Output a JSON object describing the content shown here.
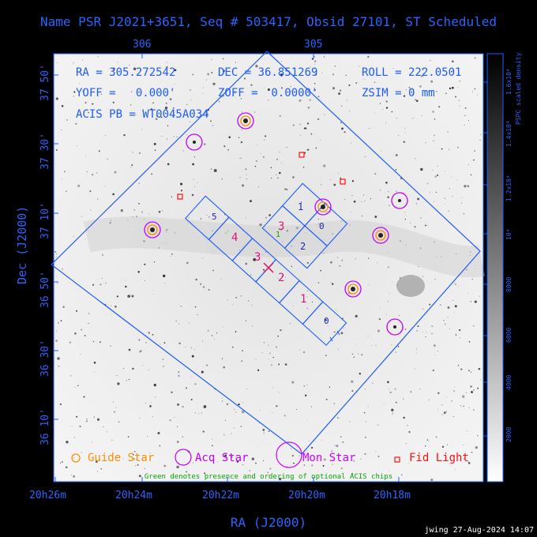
{
  "title": "Name PSR J2021+3651, Seq # 503417, Obsid 27101, ST Scheduled",
  "axes": {
    "xlabel": "RA (J2000)",
    "ylabel": "Dec (J2000)",
    "bottom_ticks": [
      "20h26m",
      "20h24m",
      "20h22m",
      "20h20m",
      "20h18m"
    ],
    "top_ticks": [
      "306",
      "305"
    ],
    "left_ticks": [
      "37 50'",
      "37 30'",
      "37 10'",
      "36 50'",
      "36 30'",
      "36 10'"
    ]
  },
  "info": {
    "ra": "RA = 305.272542",
    "dec": "DEC = 36.851269",
    "roll": "ROLL = 222.0501",
    "yoff": "YOFF =   0.000'",
    "zoff": "ZOFF =  0.0000'",
    "zsim": "ZSIM = 0 mm",
    "acis_pb": "ACIS PB = WT0045A034"
  },
  "chips": {
    "s": [
      "5",
      "4",
      "3",
      "2",
      "1",
      "0"
    ],
    "i": [
      "1",
      "0",
      "3",
      "2"
    ],
    "optional_marker": "1"
  },
  "colorbar": {
    "title": "PSPC scaled density",
    "ticks": [
      "2000",
      "4000",
      "6000",
      "8000",
      "10⁴",
      "1.2x10⁴",
      "1.4x10⁴",
      "1.6x10⁴"
    ]
  },
  "legend": {
    "guide": "Guide Star",
    "acq": "Acq Star",
    "mon": "Mon Star",
    "fid": "Fid Light",
    "note": "Green denotes presence and ordering of optional ACIS chips"
  },
  "colors": {
    "frame": "#1e5cff",
    "guide": "#ff8c00",
    "acq": "#c000ff",
    "mon": "#d000ff",
    "fid": "#ff1010",
    "chip_label": "#e0147a",
    "optional": "#00aa00"
  },
  "credit": "jwing 27-Aug-2024 14:07"
}
